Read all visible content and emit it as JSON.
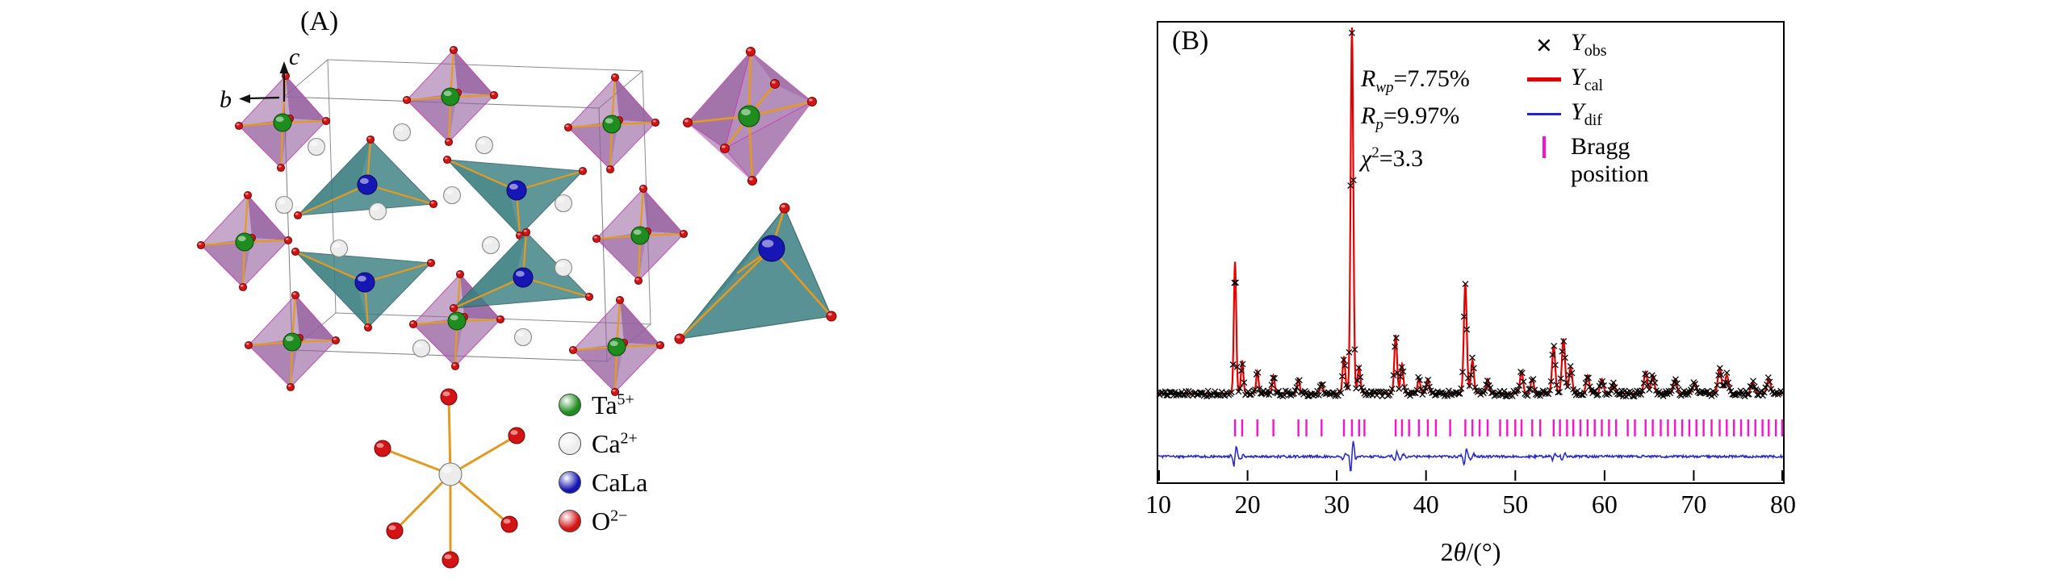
{
  "panelA": {
    "label": "(A)",
    "axes": {
      "b": "b",
      "c": "c"
    },
    "legend": [
      {
        "species": "Ta",
        "charge": "5+",
        "color": "#1e8c1e"
      },
      {
        "species": "Ca",
        "charge": "2+",
        "color": "#ececec"
      },
      {
        "species": "CaLa",
        "charge": "",
        "color": "#1616b4"
      },
      {
        "species": "O",
        "charge": "2−",
        "color": "#d41414"
      }
    ],
    "colors": {
      "octahedron": "#96619f",
      "octahedron_edge": "#c23bb0",
      "tetrahedron": "#3c7f82",
      "tetrahedron_edge": "#23555a",
      "bond": "#e39a1f",
      "cell_edge": "#6f6f6f"
    }
  },
  "panelB": {
    "label": "(B)",
    "stats": [
      {
        "sym": "R",
        "sub": "wp",
        "sup": "",
        "rest": "=7.75%"
      },
      {
        "sym": "R",
        "sub": "p",
        "sup": "",
        "rest": "=9.97%"
      },
      {
        "sym": "χ",
        "sub": "",
        "sup": "2",
        "rest": "=3.3"
      }
    ],
    "legend": [
      {
        "marker": "cross",
        "sym": "Y",
        "sub": "obs",
        "color": "#000000"
      },
      {
        "marker": "line",
        "sym": "Y",
        "sub": "cal",
        "color": "#e60000"
      },
      {
        "marker": "line",
        "sym": "Y",
        "sub": "dif",
        "color": "#2424cc"
      },
      {
        "marker": "tick",
        "label": "Bragg position",
        "color": "#f513cf"
      }
    ],
    "xlabel": {
      "pre": "2",
      "italic": "θ",
      "post": "/(°)"
    }
  },
  "chart_data": {
    "type": "line",
    "description": "Rietveld refinement powder XRD pattern: observed (crosses), calculated (red), difference (blue), Bragg positions (magenta ticks)",
    "xlabel": "2θ/(°)",
    "xlim": [
      10,
      80
    ],
    "xticks": [
      10,
      20,
      30,
      40,
      50,
      60,
      70,
      80
    ],
    "ylim_relative_intensity": [
      0,
      110
    ],
    "series": [
      {
        "name": "Yobs",
        "style": "black crosses"
      },
      {
        "name": "Ycal",
        "style": "red line"
      },
      {
        "name": "Ydif",
        "style": "blue line"
      },
      {
        "name": "Bragg position",
        "style": "magenta ticks"
      }
    ],
    "fit_stats": {
      "Rwp": "7.75%",
      "Rp": "9.97%",
      "chi2": "3.3"
    },
    "peaks": [
      [
        18.6,
        36
      ],
      [
        19.4,
        9
      ],
      [
        21.1,
        6
      ],
      [
        22.9,
        5
      ],
      [
        25.7,
        4
      ],
      [
        28.3,
        3
      ],
      [
        30.8,
        10
      ],
      [
        31.7,
        100
      ],
      [
        32.5,
        7
      ],
      [
        36.6,
        16
      ],
      [
        37.3,
        8
      ],
      [
        39.2,
        4
      ],
      [
        40.2,
        4
      ],
      [
        44.4,
        30
      ],
      [
        45.2,
        9
      ],
      [
        46.9,
        4
      ],
      [
        50.7,
        6
      ],
      [
        51.9,
        4
      ],
      [
        54.3,
        13
      ],
      [
        55.4,
        15
      ],
      [
        56.2,
        7
      ],
      [
        58.1,
        5
      ],
      [
        59.7,
        4
      ],
      [
        61.0,
        3
      ],
      [
        64.6,
        6
      ],
      [
        65.4,
        5
      ],
      [
        67.9,
        4
      ],
      [
        70.1,
        3
      ],
      [
        72.9,
        7
      ],
      [
        73.7,
        5
      ],
      [
        76.6,
        3
      ],
      [
        78.4,
        4
      ]
    ],
    "bragg_positions": [
      18.6,
      19.4,
      21.1,
      22.9,
      25.7,
      26.6,
      28.3,
      30.8,
      31.7,
      32.5,
      33.1,
      36.6,
      37.3,
      38.1,
      39.2,
      40.2,
      41.1,
      42.7,
      44.4,
      45.2,
      46.0,
      46.9,
      48.3,
      49.1,
      50.0,
      50.7,
      51.9,
      52.8,
      54.3,
      55.0,
      55.8,
      56.5,
      57.3,
      58.1,
      58.9,
      59.7,
      60.5,
      61.3,
      62.6,
      63.4,
      64.6,
      65.4,
      66.3,
      67.1,
      67.9,
      68.7,
      69.5,
      70.3,
      71.1,
      72.0,
      72.9,
      73.7,
      74.5,
      75.3,
      76.1,
      76.9,
      77.7,
      78.4,
      79.2,
      79.9
    ]
  }
}
